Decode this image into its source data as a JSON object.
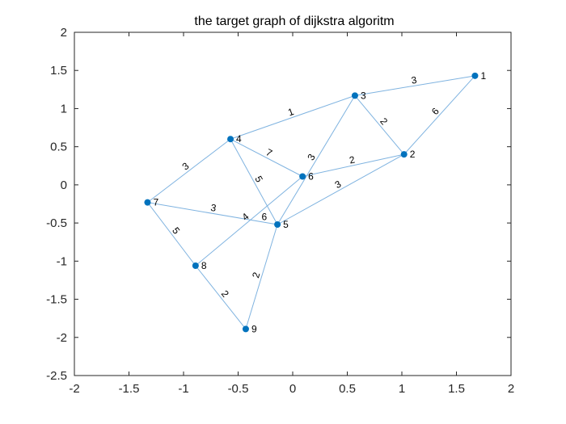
{
  "chart_data": {
    "type": "graph",
    "title": "the target graph of dijkstra algoritm",
    "xlim": [
      -2,
      2
    ],
    "ylim": [
      -2.5,
      2
    ],
    "x_ticks": [
      "-2",
      "-1.5",
      "-1",
      "-0.5",
      "0",
      "0.5",
      "1",
      "1.5",
      "2"
    ],
    "y_ticks": [
      "2",
      "1.5",
      "1",
      "0.5",
      "0",
      "-0.5",
      "-1",
      "-1.5",
      "-2",
      "-2.5"
    ],
    "grid": false,
    "colors": {
      "edge": "#7fb3e0",
      "node": "#0072bd",
      "axis": "#262626"
    },
    "nodes": [
      {
        "id": "1",
        "x": 1.67,
        "y": 1.43
      },
      {
        "id": "2",
        "x": 1.02,
        "y": 0.4
      },
      {
        "id": "3",
        "x": 0.57,
        "y": 1.17
      },
      {
        "id": "4",
        "x": -0.57,
        "y": 0.6
      },
      {
        "id": "5",
        "x": -0.14,
        "y": -0.52
      },
      {
        "id": "6",
        "x": 0.09,
        "y": 0.11
      },
      {
        "id": "7",
        "x": -1.33,
        "y": -0.23
      },
      {
        "id": "8",
        "x": -0.89,
        "y": -1.06
      },
      {
        "id": "9",
        "x": -0.43,
        "y": -1.89
      }
    ],
    "edges": [
      {
        "source": "1",
        "target": "3",
        "weight": "3"
      },
      {
        "source": "1",
        "target": "2",
        "weight": "6"
      },
      {
        "source": "3",
        "target": "2",
        "weight": "2"
      },
      {
        "source": "3",
        "target": "4",
        "weight": "1"
      },
      {
        "source": "3",
        "target": "5",
        "weight": "3"
      },
      {
        "source": "2",
        "target": "6",
        "weight": "2"
      },
      {
        "source": "2",
        "target": "5",
        "weight": "3"
      },
      {
        "source": "4",
        "target": "6",
        "weight": "7"
      },
      {
        "source": "4",
        "target": "5",
        "weight": "5"
      },
      {
        "source": "4",
        "target": "7",
        "weight": "3"
      },
      {
        "source": "6",
        "target": "8",
        "weight": "4"
      },
      {
        "source": "7",
        "target": "5",
        "weight": "3"
      },
      {
        "source": "7",
        "target": "8",
        "weight": "5"
      },
      {
        "source": "5",
        "target": "9",
        "weight": "2"
      },
      {
        "source": "8",
        "target": "9",
        "weight": "2"
      }
    ],
    "extra_labels": [
      {
        "text": "6",
        "x": -0.26,
        "y": -0.42
      }
    ]
  }
}
